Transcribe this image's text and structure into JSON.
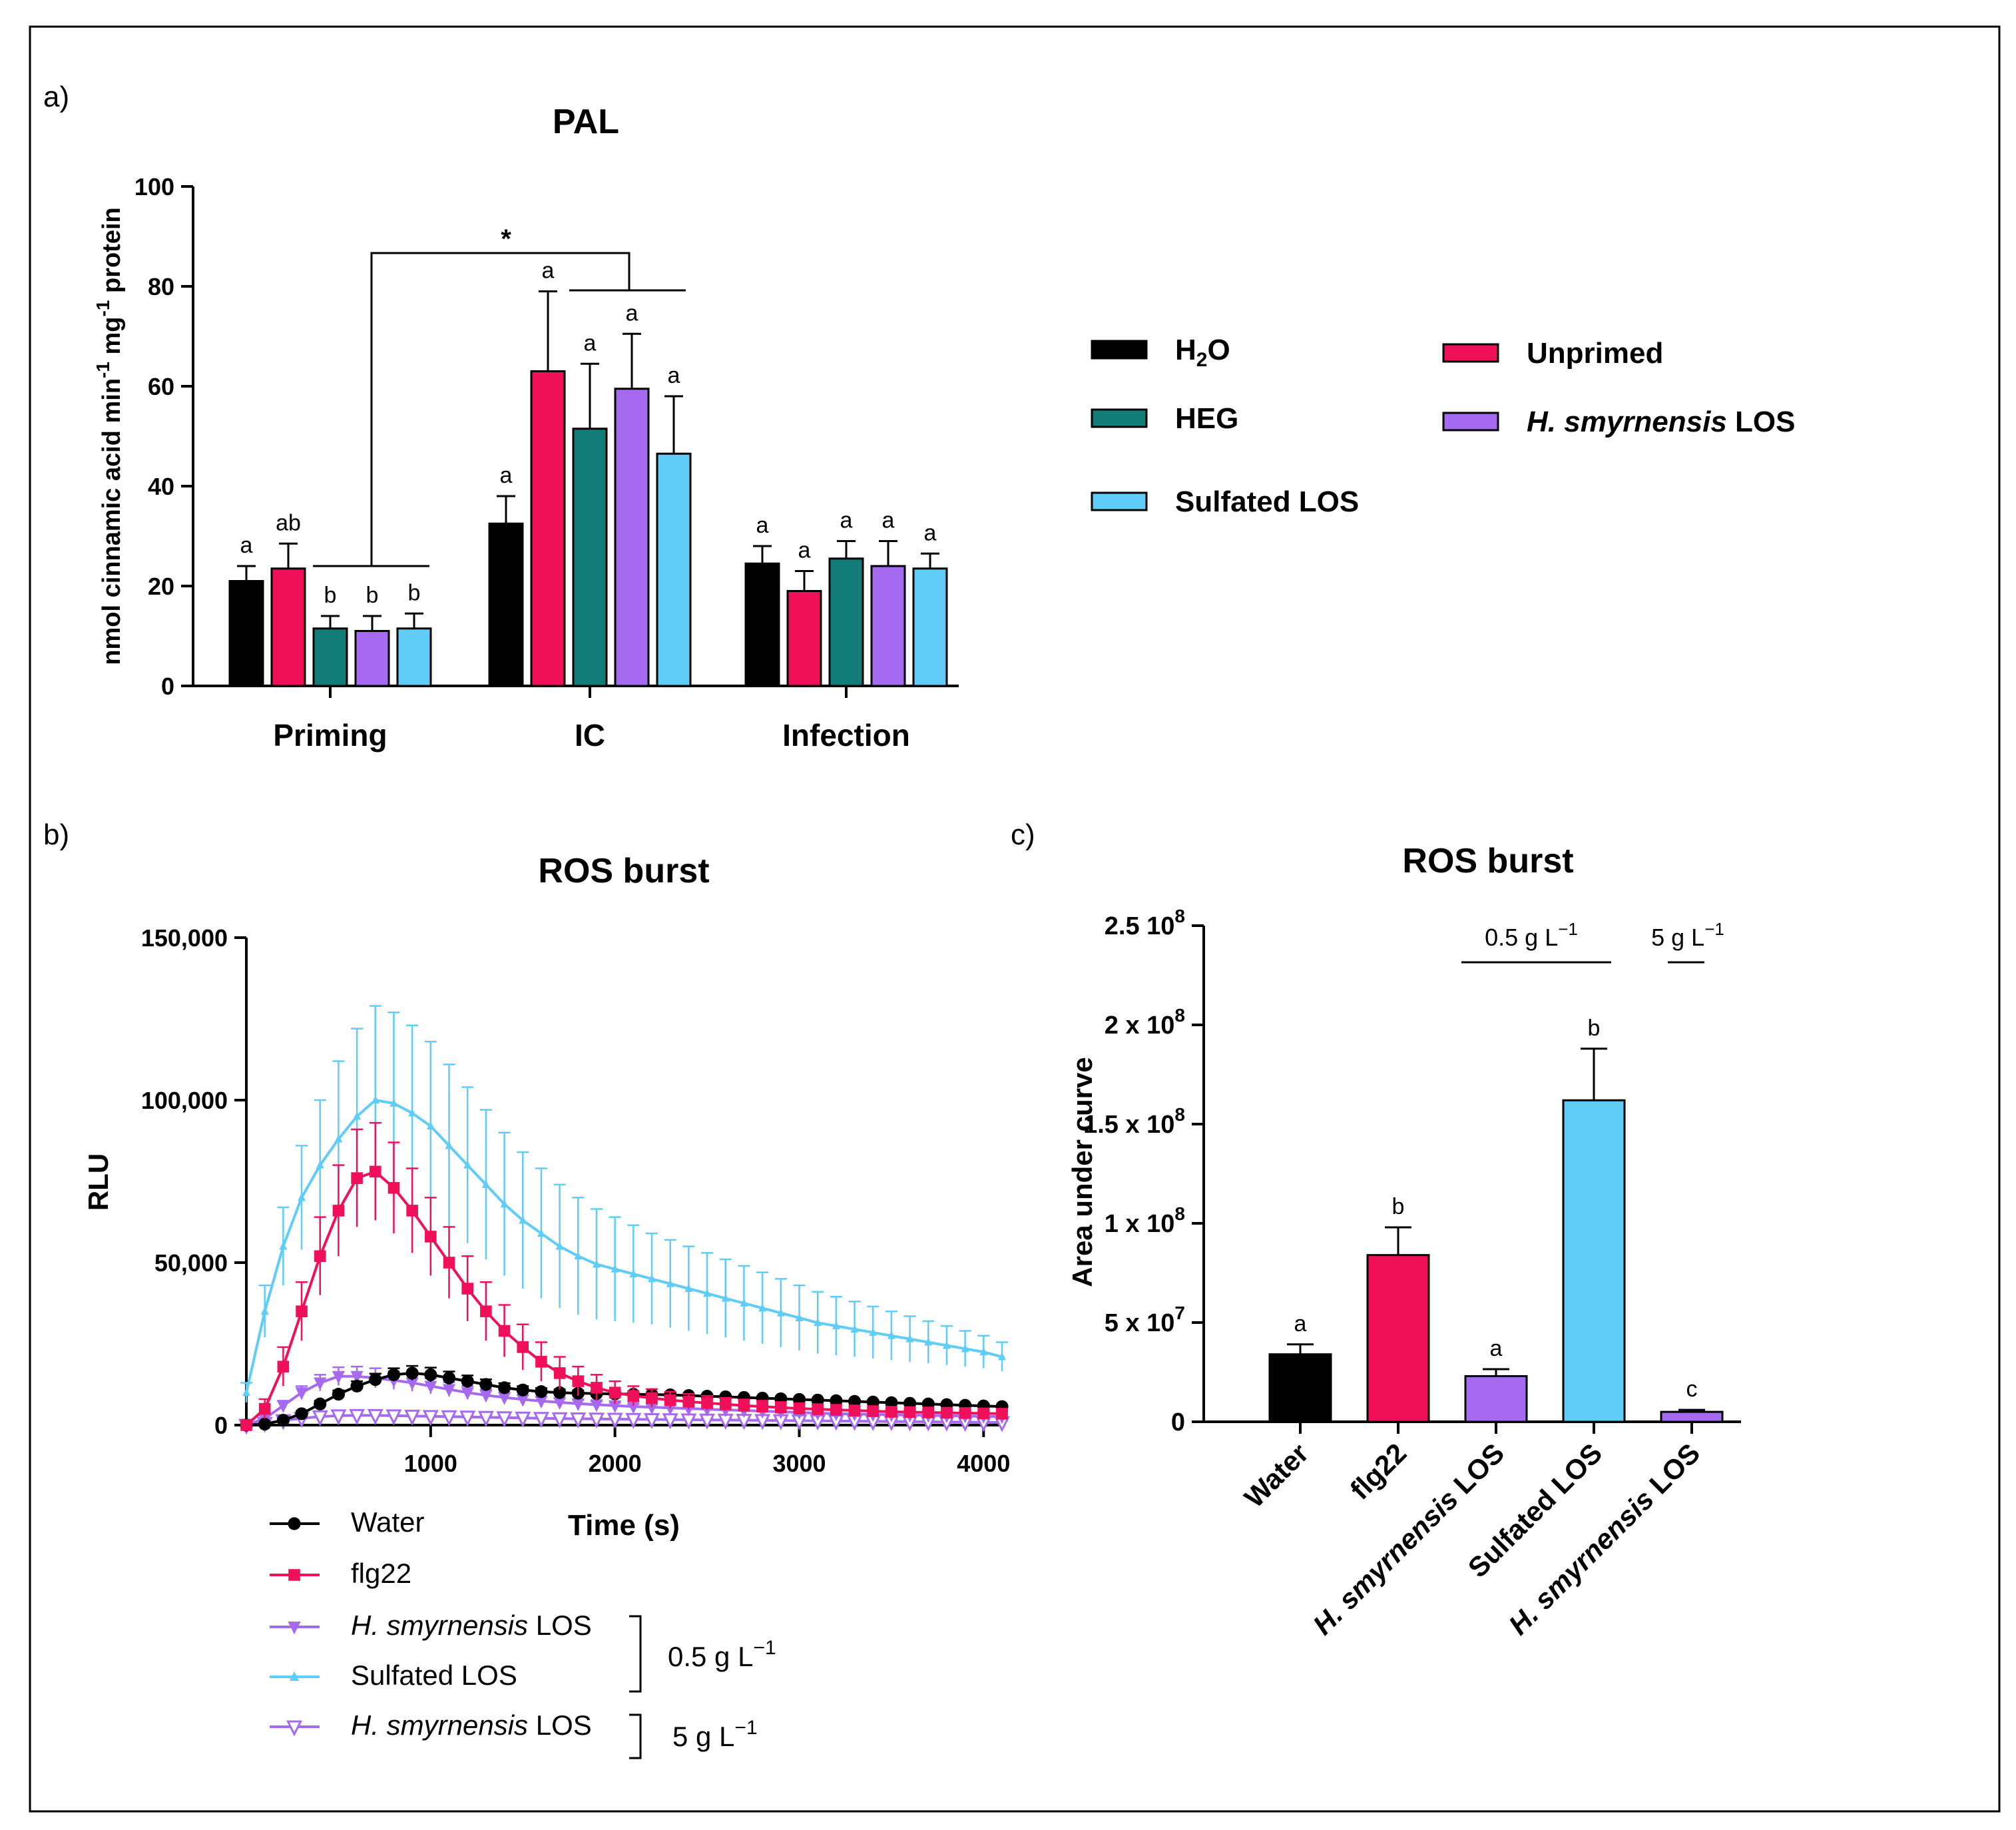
{
  "panel_labels": {
    "a": "a)",
    "b": "b)",
    "c": "c)"
  },
  "chart_data": [
    {
      "id": "pal",
      "type": "bar",
      "title": "PAL",
      "ylabel_parts": [
        "nmol cinnamic acid min",
        "-1",
        " mg",
        "-1",
        " protein"
      ],
      "xlabel": "",
      "ylim": [
        0,
        100
      ],
      "yticks": [
        0,
        20,
        40,
        60,
        80,
        100
      ],
      "categories": [
        "Priming",
        "IC",
        "Infection"
      ],
      "series": [
        {
          "name": "H2O",
          "color": "#000000",
          "values": [
            21,
            32.5,
            24.5
          ],
          "errors": [
            3,
            5.5,
            3.5
          ],
          "letters": [
            "a",
            "a",
            "a"
          ]
        },
        {
          "name": "Unprimed",
          "color": "#f0105a",
          "values": [
            23.5,
            63,
            19
          ],
          "errors": [
            5,
            16,
            4
          ],
          "letters": [
            "ab",
            "a",
            "a"
          ]
        },
        {
          "name": "HEG",
          "color": "#127c78",
          "values": [
            11.5,
            51.5,
            25.5
          ],
          "errors": [
            2.5,
            13,
            3.5
          ],
          "letters": [
            "b",
            "a",
            "a"
          ]
        },
        {
          "name": "H. smyrnensis LOS",
          "color": "#a66af0",
          "values": [
            11,
            59.5,
            24
          ],
          "errors": [
            3,
            11,
            5
          ],
          "letters": [
            "b",
            "a",
            "a"
          ]
        },
        {
          "name": "Sulfated LOS",
          "color": "#5fcdf8",
          "values": [
            11.5,
            46.5,
            23.5
          ],
          "errors": [
            3,
            11.5,
            3
          ],
          "letters": [
            "b",
            "a",
            "a"
          ]
        }
      ],
      "significance": "*",
      "legend": [
        {
          "label_main": "H",
          "label_sub": "2",
          "label_rest": "O",
          "color": "#000000"
        },
        {
          "label_main": "HEG",
          "label_sub": "",
          "label_rest": "",
          "color": "#127c78"
        },
        {
          "label_main": "Sulfated LOS",
          "label_sub": "",
          "label_rest": "",
          "color": "#5fcdf8"
        },
        {
          "label_italic": "H. smyrnensis",
          "label_main": " LOS",
          "color": "#a66af0"
        },
        {
          "label_main": "Unprimed",
          "color": "#f0105a"
        }
      ]
    },
    {
      "id": "ros_time",
      "type": "line",
      "title": "ROS burst",
      "xlabel": "Time (s)",
      "ylabel": "RLU",
      "xlim": [
        0,
        4100
      ],
      "ylim": [
        0,
        150000
      ],
      "xticks": [
        1000,
        2000,
        3000,
        4000
      ],
      "xtick_labels": [
        "1000",
        "2000",
        "3000",
        "4000"
      ],
      "yticks": [
        0,
        50000,
        100000,
        150000
      ],
      "ytick_labels": [
        "0",
        "50,000",
        "100,000",
        "150,000"
      ],
      "x": [
        0,
        100,
        200,
        300,
        400,
        500,
        600,
        700,
        800,
        900,
        1000,
        1100,
        1200,
        1300,
        1400,
        1500,
        1600,
        1700,
        1800,
        1900,
        2000,
        2100,
        2200,
        2300,
        2400,
        2500,
        2600,
        2700,
        2800,
        2900,
        3000,
        3100,
        3200,
        3300,
        3400,
        3500,
        3600,
        3700,
        3800,
        3900,
        4000,
        4100
      ],
      "series": [
        {
          "name": "Water",
          "color": "#000000",
          "marker": "circle",
          "values": [
            0,
            300,
            1500,
            3500,
            6500,
            9500,
            12000,
            14000,
            15500,
            16000,
            15500,
            14500,
            13500,
            12500,
            11500,
            10800,
            10300,
            10000,
            9800,
            9700,
            9600,
            9500,
            9400,
            9300,
            9100,
            8900,
            8700,
            8500,
            8300,
            8100,
            7900,
            7700,
            7500,
            7300,
            7100,
            6900,
            6700,
            6500,
            6300,
            6100,
            5900,
            5700
          ],
          "errors": [
            200,
            300,
            500,
            800,
            1000,
            1200,
            1500,
            1800,
            2000,
            2200,
            2200,
            2000,
            1800,
            1600,
            1400,
            1200,
            1100,
            1000,
            900,
            800,
            700,
            600,
            600,
            600,
            500,
            500,
            500,
            500,
            500,
            500,
            500,
            500,
            500,
            500,
            500,
            500,
            500,
            500,
            500,
            500,
            500,
            500
          ]
        },
        {
          "name": "flg22",
          "color": "#f0105a",
          "marker": "square",
          "values": [
            0,
            5000,
            18000,
            35000,
            52000,
            66000,
            76000,
            78000,
            73000,
            66000,
            58000,
            50000,
            42000,
            35000,
            29000,
            24000,
            19500,
            16000,
            13500,
            11500,
            10000,
            9000,
            8300,
            7700,
            7200,
            6800,
            6400,
            6000,
            5700,
            5400,
            5100,
            4900,
            4700,
            4500,
            4300,
            4100,
            4000,
            3900,
            3800,
            3700,
            3600,
            3500
          ],
          "errors": [
            500,
            3000,
            6000,
            9000,
            12000,
            14000,
            15000,
            15000,
            14000,
            13000,
            12000,
            11000,
            10000,
            9000,
            8000,
            7000,
            6000,
            5000,
            4500,
            4000,
            3500,
            3000,
            2800,
            2600,
            2400,
            2200,
            2000,
            1900,
            1800,
            1700,
            1600,
            1500,
            1400,
            1300,
            1200,
            1100,
            1000,
            1000,
            1000,
            1000,
            1000,
            1000
          ]
        },
        {
          "name": "H. smyrnensis LOS",
          "color": "#a66af0",
          "marker": "triangle-down",
          "values": [
            0,
            2000,
            6000,
            10000,
            13000,
            15000,
            15000,
            14500,
            13800,
            13000,
            12000,
            11000,
            10000,
            9200,
            8500,
            7900,
            7400,
            7000,
            6600,
            6300,
            6000,
            5700,
            5500,
            5300,
            5100,
            4900,
            4700,
            4500,
            4300,
            4100,
            3900,
            3700,
            3500,
            3400,
            3300,
            3200,
            3100,
            3000,
            2900,
            2800,
            2700,
            2600
          ],
          "errors": [
            300,
            1000,
            1500,
            2000,
            2500,
            2800,
            3000,
            3000,
            2800,
            2600,
            2400,
            2200,
            2000,
            1800,
            1600,
            1400,
            1300,
            1200,
            1100,
            1000,
            900,
            800,
            800,
            800,
            800,
            800,
            800,
            800,
            800,
            800,
            800,
            800,
            800,
            800,
            800,
            800,
            800,
            800,
            800,
            800,
            800,
            800
          ]
        },
        {
          "name": "Sulfated LOS",
          "color": "#5fcdf8",
          "marker": "triangle-up",
          "values": [
            10000,
            35000,
            55000,
            70000,
            80000,
            88000,
            95000,
            100000,
            99000,
            96000,
            92000,
            86000,
            80000,
            74000,
            68000,
            63000,
            59000,
            55000,
            52000,
            49500,
            48000,
            46500,
            45000,
            43500,
            42000,
            40500,
            39000,
            37500,
            36000,
            34500,
            33000,
            31500,
            30500,
            29500,
            28500,
            27500,
            26500,
            25500,
            24500,
            23500,
            22500,
            21000
          ],
          "errors": [
            3000,
            8000,
            12000,
            16000,
            20000,
            24000,
            27000,
            29000,
            28000,
            27000,
            26000,
            25000,
            24000,
            23000,
            22000,
            21000,
            20000,
            19000,
            18000,
            17000,
            16000,
            15000,
            14000,
            13500,
            13000,
            12500,
            12000,
            11500,
            11000,
            10500,
            10000,
            9500,
            9000,
            8500,
            8000,
            7500,
            7000,
            6500,
            6000,
            5500,
            5000,
            4500
          ]
        },
        {
          "name": "H. smyrnensis LOS",
          "color": "#a66af0",
          "marker": "triangle-down-open",
          "values": [
            0,
            600,
            1400,
            2100,
            2600,
            2900,
            3000,
            3000,
            2900,
            2800,
            2700,
            2600,
            2500,
            2400,
            2300,
            2200,
            2100,
            2000,
            1950,
            1900,
            1850,
            1800,
            1750,
            1700,
            1650,
            1600,
            1550,
            1500,
            1450,
            1400,
            1350,
            1300,
            1250,
            1200,
            1150,
            1100,
            1050,
            1000,
            950,
            900,
            850,
            800
          ],
          "errors": [
            200,
            400,
            600,
            800,
            1000,
            1100,
            1200,
            1200,
            1100,
            1000,
            900,
            800,
            700,
            600,
            600,
            600,
            500,
            500,
            500,
            500,
            500,
            500,
            500,
            500,
            500,
            500,
            500,
            500,
            500,
            500,
            500,
            500,
            500,
            500,
            500,
            500,
            500,
            500,
            500,
            500,
            500,
            500
          ]
        }
      ],
      "legend": [
        {
          "italic": "",
          "text": "Water"
        },
        {
          "italic": "",
          "text": "flg22"
        },
        {
          "italic": "H. smyrnensis",
          "text": " LOS"
        },
        {
          "italic": "",
          "text": "Sulfated LOS"
        },
        {
          "italic": "H. smyrnensis",
          "text": " LOS"
        }
      ],
      "bracket_labels": [
        {
          "main": "0.5 g L",
          "sup": "−1"
        },
        {
          "main": "5 g L",
          "sup": "−1"
        }
      ]
    },
    {
      "id": "ros_auc",
      "type": "bar",
      "title": "ROS burst",
      "ylabel": "Area under curve",
      "ylim": [
        0,
        250000000
      ],
      "yticks": [
        0,
        50000000,
        100000000,
        150000000,
        200000000,
        250000000
      ],
      "ytick_labels": [
        {
          "main": "0",
          "sup": ""
        },
        {
          "main": "5 x 10",
          "sup": "7"
        },
        {
          "main": "1 x 10",
          "sup": "8"
        },
        {
          "main": "1.5 x 10",
          "sup": "8"
        },
        {
          "main": "2 x 10",
          "sup": "8"
        },
        {
          "main": "2.5  10",
          "sup": "8"
        }
      ],
      "categories": [
        {
          "italic": "",
          "text": "Water"
        },
        {
          "italic": "",
          "text": "flg22"
        },
        {
          "italic": "H. smyrnensis",
          "text": " LOS"
        },
        {
          "italic": "",
          "text": "Sulfated LOS"
        },
        {
          "italic": "H. smyrnensis",
          "text": " LOS"
        }
      ],
      "values": [
        34000000,
        84000000,
        23000000,
        162000000,
        5000000
      ],
      "errors": [
        5000000,
        14000000,
        3500000,
        26000000,
        1000000
      ],
      "colors": [
        "#000000",
        "#f0105a",
        "#a66af0",
        "#5fcdf8",
        "#a66af0"
      ],
      "letters": [
        "a",
        "b",
        "a",
        "b",
        "c"
      ],
      "group_labels": [
        {
          "main": "0.5 g L",
          "sup": "−1"
        },
        {
          "main": "5 g L",
          "sup": "−1"
        }
      ]
    }
  ]
}
